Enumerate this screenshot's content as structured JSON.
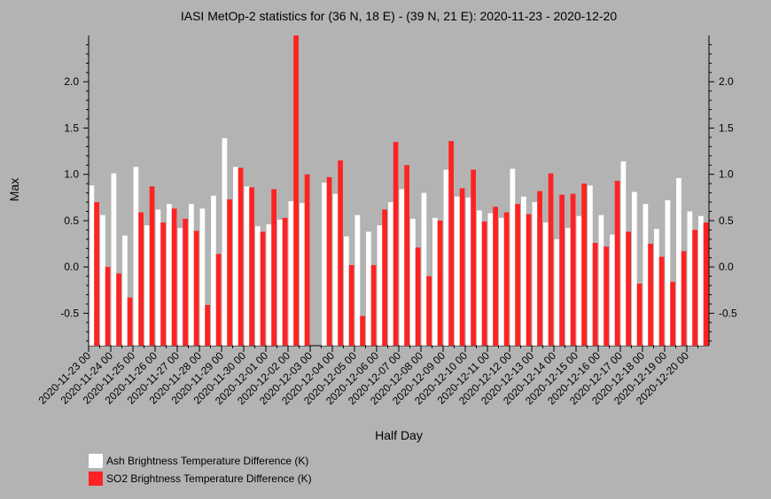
{
  "chart_data": {
    "type": "bar",
    "title": "IASI MetOp-2 statistics for (36 N, 18 E) - (39 N, 21 E): 2020-11-23 - 2020-12-20",
    "xlabel": "Half Day",
    "ylabel": "Max",
    "ylim": [
      -0.85,
      2.5
    ],
    "yticks": [
      "2.0",
      "1.5",
      "1.0",
      "0.5",
      "0.0",
      "-0.5"
    ],
    "ytick_values": [
      2.0,
      1.5,
      1.0,
      0.5,
      0.0,
      -0.5
    ],
    "grid": false,
    "legend_position": "bottom-left",
    "colors": {
      "background": "#b3b3b3",
      "ash": "#ffffff",
      "so2": "#ff2222"
    },
    "categories": [
      "2020-11-23 00",
      "2020-11-23 12",
      "2020-11-24 00",
      "2020-11-24 12",
      "2020-11-25 00",
      "2020-11-25 12",
      "2020-11-26 00",
      "2020-11-26 12",
      "2020-11-27 00",
      "2020-11-27 12",
      "2020-11-28 00",
      "2020-11-28 12",
      "2020-11-29 00",
      "2020-11-29 12",
      "2020-11-30 00",
      "2020-11-30 12",
      "2020-12-01 00",
      "2020-12-01 12",
      "2020-12-02 00",
      "2020-12-02 12",
      "2020-12-03 00",
      "2020-12-03 12",
      "2020-12-04 00",
      "2020-12-04 12",
      "2020-12-05 00",
      "2020-12-05 12",
      "2020-12-06 00",
      "2020-12-06 12",
      "2020-12-07 00",
      "2020-12-07 12",
      "2020-12-08 00",
      "2020-12-08 12",
      "2020-12-09 00",
      "2020-12-09 12",
      "2020-12-10 00",
      "2020-12-10 12",
      "2020-12-11 00",
      "2020-12-11 12",
      "2020-12-12 00",
      "2020-12-12 12",
      "2020-12-13 00",
      "2020-12-13 12",
      "2020-12-14 00",
      "2020-12-14 12",
      "2020-12-15 00",
      "2020-12-15 12",
      "2020-12-16 00",
      "2020-12-16 12",
      "2020-12-17 00",
      "2020-12-17 12",
      "2020-12-18 00",
      "2020-12-18 12",
      "2020-12-19 00",
      "2020-12-19 12",
      "2020-12-20 00",
      "2020-12-20 12"
    ],
    "xtick_labels": [
      "2020-11-23 00",
      "2020-11-24 00",
      "2020-11-25 00",
      "2020-11-26 00",
      "2020-11-27 00",
      "2020-11-28 00",
      "2020-11-29 00",
      "2020-11-30 00",
      "2020-12-01 00",
      "2020-12-02 00",
      "2020-12-03 00",
      "2020-12-04 00",
      "2020-12-05 00",
      "2020-12-06 00",
      "2020-12-07 00",
      "2020-12-08 00",
      "2020-12-09 00",
      "2020-12-10 00",
      "2020-12-11 00",
      "2020-12-12 00",
      "2020-12-13 00",
      "2020-12-14 00",
      "2020-12-15 00",
      "2020-12-16 00",
      "2020-12-17 00",
      "2020-12-18 00",
      "2020-12-19 00",
      "2020-12-20 00"
    ],
    "series": [
      {
        "name": "Ash Brightness Temperature Difference (K)",
        "values": [
          0.88,
          0.56,
          1.01,
          0.34,
          1.08,
          0.45,
          0.62,
          0.68,
          0.42,
          0.68,
          0.63,
          0.77,
          1.39,
          1.08,
          0.87,
          0.44,
          0.46,
          0.51,
          0.71,
          0.69,
          null,
          0.91,
          0.79,
          0.33,
          0.56,
          0.38,
          0.45,
          0.7,
          0.84,
          0.52,
          0.8,
          0.53,
          1.05,
          0.76,
          0.75,
          0.61,
          0.58,
          0.53,
          1.06,
          0.76,
          0.7,
          0.48,
          0.3,
          0.42,
          0.55,
          0.88,
          0.56,
          0.35,
          1.14,
          0.81,
          0.68,
          0.41,
          0.72,
          0.96,
          0.6,
          0.55
        ]
      },
      {
        "name": "SO2 Brightness Temperature Difference (K)",
        "values": [
          0.7,
          0.0,
          -0.07,
          -0.33,
          0.59,
          0.87,
          0.48,
          0.63,
          0.52,
          0.39,
          -0.41,
          0.14,
          0.73,
          1.07,
          0.86,
          0.38,
          0.84,
          0.53,
          2.5,
          1.0,
          null,
          0.97,
          1.15,
          0.02,
          -0.53,
          0.02,
          0.62,
          1.35,
          1.1,
          0.21,
          -0.1,
          0.5,
          1.36,
          0.85,
          1.05,
          0.49,
          0.65,
          0.59,
          0.68,
          0.57,
          0.82,
          1.01,
          0.78,
          0.79,
          0.9,
          0.26,
          0.22,
          0.93,
          0.38,
          -0.18,
          0.25,
          0.11,
          -0.16,
          0.17,
          0.4,
          0.48
        ]
      }
    ]
  }
}
